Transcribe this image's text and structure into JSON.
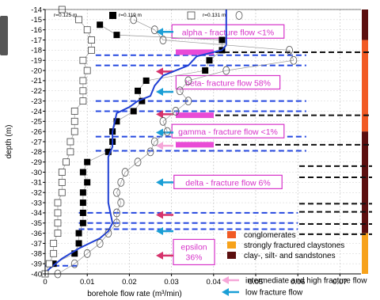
{
  "chart_data": {
    "type": "line",
    "xlabel": "borehole flow rate (m³/min)",
    "ylabel": "depth (m)",
    "xlim": [
      0,
      0.075
    ],
    "ylim": [
      -40,
      -14
    ],
    "x_ticks": [
      "0",
      "0.01",
      "0.02",
      "0.03",
      "0.04",
      "0.05",
      "0.06",
      "0.07"
    ],
    "y_ticks": [
      "-14",
      "-15",
      "-16",
      "-17",
      "-18",
      "-19",
      "-20",
      "-21",
      "-22",
      "-23",
      "-24",
      "-25",
      "-26",
      "-27",
      "-28",
      "-29",
      "-30",
      "-31",
      "-32",
      "-33",
      "-34",
      "-35",
      "-36",
      "-37",
      "-38",
      "-39",
      "-40"
    ],
    "series": [
      {
        "name": "r=0.119 m",
        "marker": "filled-square",
        "color": "#000000",
        "points": [
          [
            0.013,
            -15.5
          ],
          [
            0.017,
            -16.5
          ],
          [
            0.042,
            -17
          ],
          [
            0.042,
            -18
          ],
          [
            0.039,
            -19
          ],
          [
            0.038,
            -20
          ],
          [
            0.024,
            -21
          ],
          [
            0.022,
            -22
          ],
          [
            0.023,
            -23
          ],
          [
            0.021,
            -24
          ],
          [
            0.017,
            -25
          ],
          [
            0.016,
            -26
          ],
          [
            0.016,
            -27
          ],
          [
            0.015,
            -28
          ],
          [
            0.01,
            -29
          ],
          [
            0.009,
            -30
          ],
          [
            0.01,
            -31
          ],
          [
            0.009,
            -32
          ],
          [
            0.009,
            -33
          ],
          [
            0.009,
            -34
          ],
          [
            0.009,
            -35
          ],
          [
            0.008,
            -36
          ],
          [
            0.008,
            -37
          ],
          [
            0.007,
            -38
          ],
          [
            0.002,
            -39
          ]
        ]
      },
      {
        "name": "r=0.125 m",
        "marker": "line",
        "color": "#1f3fd4",
        "points": [
          [
            0.043,
            -14
          ],
          [
            0.043,
            -17.5
          ],
          [
            0.042,
            -18
          ],
          [
            0.036,
            -18.6
          ],
          [
            0.034,
            -19.5
          ],
          [
            0.028,
            -20.5
          ],
          [
            0.026,
            -21.5
          ],
          [
            0.025,
            -22.5
          ],
          [
            0.022,
            -23
          ],
          [
            0.02,
            -23.6
          ],
          [
            0.017,
            -24.2
          ],
          [
            0.016,
            -26
          ],
          [
            0.016,
            -27.5
          ],
          [
            0.015,
            -28.5
          ],
          [
            0.015,
            -33
          ],
          [
            0.016,
            -35
          ],
          [
            0.015,
            -35.8
          ],
          [
            0.013,
            -36.5
          ],
          [
            0.008,
            -37.5
          ],
          [
            0.004,
            -38.5
          ],
          [
            0.001,
            -39.5
          ],
          [
            0,
            -40
          ]
        ]
      },
      {
        "name": "r=0.131 m",
        "marker": "open-circle",
        "color": "#666666",
        "points": [
          [
            0.021,
            -15
          ],
          [
            0.026,
            -16
          ],
          [
            0.028,
            -17
          ],
          [
            0.058,
            -18
          ],
          [
            0.059,
            -19
          ],
          [
            0.043,
            -20
          ],
          [
            0.034,
            -21
          ],
          [
            0.032,
            -22
          ],
          [
            0.034,
            -23
          ],
          [
            0.031,
            -24
          ],
          [
            0.028,
            -25
          ],
          [
            0.029,
            -26
          ],
          [
            0.026,
            -27
          ],
          [
            0.025,
            -28
          ],
          [
            0.022,
            -29
          ],
          [
            0.019,
            -30
          ],
          [
            0.018,
            -31
          ],
          [
            0.017,
            -32
          ],
          [
            0.018,
            -33
          ],
          [
            0.017,
            -34
          ],
          [
            0.017,
            -35
          ],
          [
            0.015,
            -36
          ],
          [
            0.013,
            -37
          ],
          [
            0.01,
            -38
          ],
          [
            0.007,
            -39
          ],
          [
            0.003,
            -40
          ]
        ]
      },
      {
        "name": "open-square (r=0.131 m)",
        "marker": "open-square",
        "color": "#444444",
        "points": [
          [
            0.004,
            -14
          ],
          [
            0.008,
            -15
          ],
          [
            0.01,
            -16
          ],
          [
            0.011,
            -17
          ],
          [
            0.011,
            -18
          ],
          [
            0.009,
            -19
          ],
          [
            0.01,
            -20
          ],
          [
            0.009,
            -21
          ],
          [
            0.009,
            -22
          ],
          [
            0.009,
            -23
          ],
          [
            0.007,
            -24
          ],
          [
            0.007,
            -25
          ],
          [
            0.007,
            -26
          ],
          [
            0.006,
            -27
          ],
          [
            0.006,
            -28
          ],
          [
            0.005,
            -29
          ],
          [
            0.004,
            -30
          ],
          [
            0.004,
            -31
          ],
          [
            0.004,
            -32
          ],
          [
            0.003,
            -33
          ],
          [
            0.003,
            -34
          ],
          [
            0.003,
            -35
          ],
          [
            0.003,
            -36
          ],
          [
            0.002,
            -37
          ],
          [
            0.002,
            -38
          ],
          [
            0.001,
            -39
          ],
          [
            0,
            -40
          ]
        ]
      }
    ],
    "legend_labels": [
      "r=0.125 m",
      "r=0.119 m",
      "r=0.131 m"
    ],
    "zones": [
      {
        "label": "alpha - fracture flow <1%",
        "depth": -16.2
      },
      {
        "label": "beta- fracture flow 58%",
        "depth": -21.2
      },
      {
        "label": "gamma - fracture flow <1%",
        "depth": -26.0
      },
      {
        "label": "delta - fracture flow 6%",
        "depth": -31.0
      },
      {
        "label_lines": [
          "epsilon",
          "36%"
        ],
        "depth": -37.7
      }
    ],
    "fracture_lines_blue": [
      -18.5,
      -19.5,
      -23.0,
      -24.0,
      -26.5,
      -27.9,
      -34.0,
      -35.0,
      -35.6,
      -39.2
    ],
    "fracture_lines_black": [
      -18.2,
      -24.4,
      -27.3,
      -29.4,
      -30.5,
      -33.1,
      -33.9,
      -35.1,
      -36.1
    ],
    "magenta_bars": [
      -18.2,
      -24.4,
      -27.3
    ],
    "arrows": [
      {
        "type": "low",
        "depth": -16.2
      },
      {
        "type": "high",
        "depth": -20.1
      },
      {
        "type": "low",
        "depth": -22.1
      },
      {
        "type": "high",
        "depth": -24.3
      },
      {
        "type": "low",
        "depth": -26.1
      },
      {
        "type": "intermediate",
        "depth": -27.4
      },
      {
        "type": "low",
        "depth": -31.0
      },
      {
        "type": "high",
        "depth": -34.2
      },
      {
        "type": "low",
        "depth": -35.8
      },
      {
        "type": "high",
        "depth": -38.2
      }
    ],
    "lithology_column": [
      {
        "from": -14,
        "to": -17,
        "unit": "clay-silt"
      },
      {
        "from": -17,
        "to": -26,
        "unit": "conglomerate"
      },
      {
        "from": -26,
        "to": -36,
        "unit": "clay-silt"
      },
      {
        "from": -36,
        "to": -40,
        "unit": "fractured-claystone"
      }
    ],
    "lithology_legend": [
      {
        "label": "conglomerates",
        "color": "#f15a24"
      },
      {
        "label": "strongly fractured claystones",
        "color": "#f7a21b"
      },
      {
        "label": "clay-, silt- and sandstones",
        "color": "#5b0f0f"
      }
    ],
    "arrow_legend": [
      {
        "label": "intermediate and high fracture flow",
        "color": "#f5a6d8"
      },
      {
        "label": "low fracture flow",
        "color": "#1a9fd6"
      }
    ]
  }
}
